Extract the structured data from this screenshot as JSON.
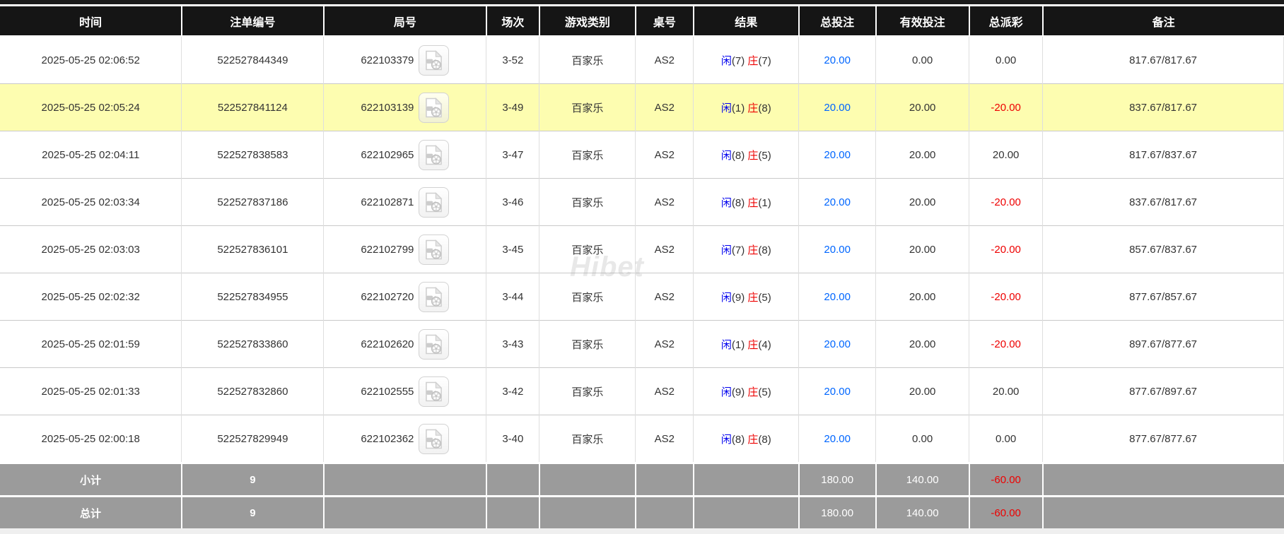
{
  "watermark": "Hibet",
  "colors": {
    "header_bg": "#151515",
    "highlight_row": "#fdfdb0",
    "amount_blue": "#0066ff",
    "player_blue": "#0000ee",
    "banker_red": "#ee0000",
    "negative_red": "#ee0000",
    "footer_gray": "#9b9b9b"
  },
  "icons": {
    "video_replay": "video-replay-icon"
  },
  "table": {
    "columns": [
      {
        "id": "time",
        "label": "时间",
        "width_pct": 14.15
      },
      {
        "id": "bet_id",
        "label": "注单编号",
        "width_pct": 11.07
      },
      {
        "id": "round",
        "label": "局号",
        "width_pct": 12.67
      },
      {
        "id": "session",
        "label": "场次",
        "width_pct": 4.13
      },
      {
        "id": "game",
        "label": "游戏类别",
        "width_pct": 7.49
      },
      {
        "id": "table_no",
        "label": "桌号",
        "width_pct": 4.52
      },
      {
        "id": "result",
        "label": "结果",
        "width_pct": 8.2
      },
      {
        "id": "total_bet",
        "label": "总投注",
        "width_pct": 6.0
      },
      {
        "id": "valid_bet",
        "label": "有效投注",
        "width_pct": 7.27
      },
      {
        "id": "payout",
        "label": "总派彩",
        "width_pct": 5.73
      },
      {
        "id": "remark",
        "label": "备注",
        "width_pct": 18.77
      }
    ],
    "rows": [
      {
        "time": "2025-05-25 02:06:52",
        "bet_id": "522527844349",
        "round": "622103379",
        "session": "3-52",
        "game": "百家乐",
        "table_no": "AS2",
        "result": {
          "player": "闲",
          "player_num": "(7)",
          "banker": "庄",
          "banker_num": "(7)"
        },
        "total_bet": "20.00",
        "valid_bet": "0.00",
        "payout": "0.00",
        "remark": "817.67/817.67",
        "highlighted": false
      },
      {
        "time": "2025-05-25 02:05:24",
        "bet_id": "522527841124",
        "round": "622103139",
        "session": "3-49",
        "game": "百家乐",
        "table_no": "AS2",
        "result": {
          "player": "闲",
          "player_num": "(1)",
          "banker": "庄",
          "banker_num": "(8)"
        },
        "total_bet": "20.00",
        "valid_bet": "20.00",
        "payout": "-20.00",
        "remark": "837.67/817.67",
        "highlighted": true
      },
      {
        "time": "2025-05-25 02:04:11",
        "bet_id": "522527838583",
        "round": "622102965",
        "session": "3-47",
        "game": "百家乐",
        "table_no": "AS2",
        "result": {
          "player": "闲",
          "player_num": "(8)",
          "banker": "庄",
          "banker_num": "(5)"
        },
        "total_bet": "20.00",
        "valid_bet": "20.00",
        "payout": "20.00",
        "remark": "817.67/837.67",
        "highlighted": false
      },
      {
        "time": "2025-05-25 02:03:34",
        "bet_id": "522527837186",
        "round": "622102871",
        "session": "3-46",
        "game": "百家乐",
        "table_no": "AS2",
        "result": {
          "player": "闲",
          "player_num": "(8)",
          "banker": "庄",
          "banker_num": "(1)"
        },
        "total_bet": "20.00",
        "valid_bet": "20.00",
        "payout": "-20.00",
        "remark": "837.67/817.67",
        "highlighted": false
      },
      {
        "time": "2025-05-25 02:03:03",
        "bet_id": "522527836101",
        "round": "622102799",
        "session": "3-45",
        "game": "百家乐",
        "table_no": "AS2",
        "result": {
          "player": "闲",
          "player_num": "(7)",
          "banker": "庄",
          "banker_num": "(8)"
        },
        "total_bet": "20.00",
        "valid_bet": "20.00",
        "payout": "-20.00",
        "remark": "857.67/837.67",
        "highlighted": false
      },
      {
        "time": "2025-05-25 02:02:32",
        "bet_id": "522527834955",
        "round": "622102720",
        "session": "3-44",
        "game": "百家乐",
        "table_no": "AS2",
        "result": {
          "player": "闲",
          "player_num": "(9)",
          "banker": "庄",
          "banker_num": "(5)"
        },
        "total_bet": "20.00",
        "valid_bet": "20.00",
        "payout": "-20.00",
        "remark": "877.67/857.67",
        "highlighted": false
      },
      {
        "time": "2025-05-25 02:01:59",
        "bet_id": "522527833860",
        "round": "622102620",
        "session": "3-43",
        "game": "百家乐",
        "table_no": "AS2",
        "result": {
          "player": "闲",
          "player_num": "(1)",
          "banker": "庄",
          "banker_num": "(4)"
        },
        "total_bet": "20.00",
        "valid_bet": "20.00",
        "payout": "-20.00",
        "remark": "897.67/877.67",
        "highlighted": false
      },
      {
        "time": "2025-05-25 02:01:33",
        "bet_id": "522527832860",
        "round": "622102555",
        "session": "3-42",
        "game": "百家乐",
        "table_no": "AS2",
        "result": {
          "player": "闲",
          "player_num": "(9)",
          "banker": "庄",
          "banker_num": "(5)"
        },
        "total_bet": "20.00",
        "valid_bet": "20.00",
        "payout": "20.00",
        "remark": "877.67/897.67",
        "highlighted": false
      },
      {
        "time": "2025-05-25 02:00:18",
        "bet_id": "522527829949",
        "round": "622102362",
        "session": "3-40",
        "game": "百家乐",
        "table_no": "AS2",
        "result": {
          "player": "闲",
          "player_num": "(8)",
          "banker": "庄",
          "banker_num": "(8)"
        },
        "total_bet": "20.00",
        "valid_bet": "0.00",
        "payout": "0.00",
        "remark": "877.67/877.67",
        "highlighted": false
      }
    ],
    "footer_rows": [
      {
        "label": "小计",
        "count": "9",
        "total_bet": "180.00",
        "valid_bet": "140.00",
        "payout": "-60.00"
      },
      {
        "label": "总计",
        "count": "9",
        "total_bet": "180.00",
        "valid_bet": "140.00",
        "payout": "-60.00"
      }
    ]
  }
}
